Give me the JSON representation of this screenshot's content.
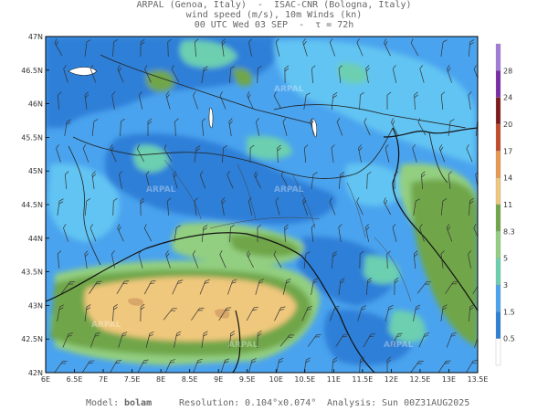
{
  "header": {
    "line1": "ARPAL (Genoa, Italy)  -  ISAC-CNR (Bologna, Italy)",
    "line2": "wind speed (m/s), 10m Winds (kn)",
    "line3": "00 UTC Wed 03 SEP  -  τ = 72h"
  },
  "map": {
    "lat_ticks": [
      "47N",
      "46.5N",
      "46N",
      "45.5N",
      "45N",
      "44.5N",
      "44N",
      "43.5N",
      "43N",
      "42.5N",
      "42N"
    ],
    "lon_ticks": [
      "6E",
      "6.5E",
      "7E",
      "7.5E",
      "8E",
      "8.5E",
      "9E",
      "9.5E",
      "10E",
      "10.5E",
      "11E",
      "11.5E",
      "12E",
      "12.5E",
      "13E",
      "13.5E"
    ],
    "watermark": "ARPAL",
    "colors": {
      "deep_blue": "#2e7fd8",
      "blue": "#4aa3ee",
      "light_blue": "#62c4f2",
      "teal": "#6ccfb0",
      "light_green": "#93cf80",
      "green": "#6fa64a",
      "tan": "#f0c87d"
    }
  },
  "colorbar": {
    "labels": [
      "28",
      "24",
      "20",
      "17",
      "14",
      "11",
      "8.3",
      "5",
      "3",
      "1.5",
      "0.5"
    ],
    "colors": [
      "#a27bd8",
      "#7a2ca6",
      "#7e1a1a",
      "#c24a2a",
      "#e89850",
      "#f0c87d",
      "#6fa64a",
      "#93cf80",
      "#6ccfb0",
      "#4aa3ee",
      "#2e7fd8",
      "#ffffff"
    ]
  },
  "footer": {
    "model_label": "Model:",
    "model_value": "bolam",
    "resolution_label": "Resolution:",
    "resolution_value": "0.104°x0.074°",
    "analysis_label": "Analysis:",
    "analysis_value": "Sun 00Z31AUG2025"
  }
}
